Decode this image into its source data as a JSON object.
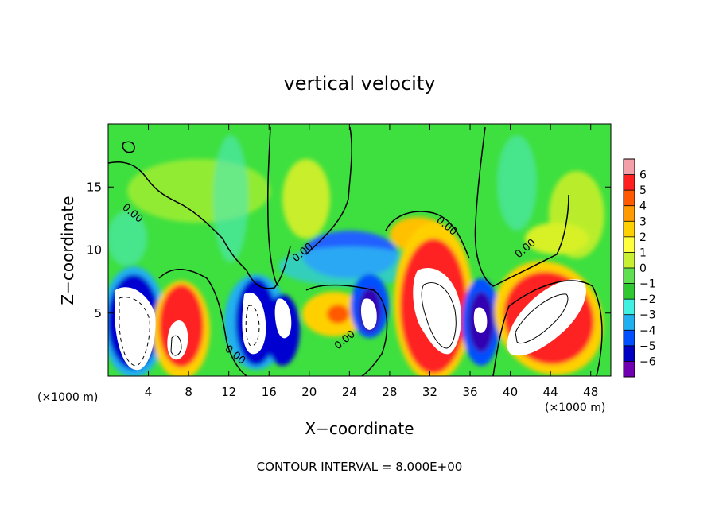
{
  "chart_data": {
    "type": "heatmap",
    "title": "vertical velocity",
    "xlabel": "X−coordinate",
    "ylabel": "Z−coordinate",
    "x_unit_left": "(×1000 m)",
    "x_unit_right": "(×1000 m)",
    "xlim": [
      0,
      50
    ],
    "ylim": [
      0,
      20
    ],
    "x_ticks": [
      4,
      8,
      12,
      16,
      20,
      24,
      28,
      32,
      36,
      40,
      44,
      48
    ],
    "x_tick_labels": [
      "4",
      "8",
      "12",
      "16",
      "20",
      "24",
      "28",
      "32",
      "36",
      "40",
      "44",
      "48"
    ],
    "y_ticks": [
      5,
      10,
      15
    ],
    "y_tick_labels": [
      "5",
      "10",
      "15"
    ],
    "colorbar": {
      "min": -6,
      "max": 6,
      "tick_values": [
        6,
        5,
        4,
        3,
        2,
        1,
        0,
        -1,
        -2,
        -3,
        -4,
        -5,
        -6
      ],
      "tick_labels": [
        "6",
        "5",
        "4",
        "3",
        "2",
        "1",
        "0",
        "−1",
        "−2",
        "−3",
        "−4",
        "−5",
        "−6"
      ],
      "colors": [
        "#f4a0a8",
        "#ff2020",
        "#ff5a00",
        "#ff9a00",
        "#ffd000",
        "#ffff40",
        "#c8f030",
        "#60e050",
        "#30c830",
        "#40f0e0",
        "#20b0f0",
        "#0050ff",
        "#0000c0",
        "#7000b0"
      ]
    },
    "contour_labels": [
      "0.00",
      "0.00",
      "0.00",
      "0.00",
      "0.00",
      "0.00"
    ],
    "features": [
      {
        "x": 2.4,
        "z": 4.8,
        "value": -9
      },
      {
        "x": 7.0,
        "z": 3.2,
        "value": 8
      },
      {
        "x": 14.6,
        "z": 4.8,
        "value": -8
      },
      {
        "x": 17.6,
        "z": 4.6,
        "value": -7
      },
      {
        "x": 21.5,
        "z": 5.0,
        "value": 3.5
      },
      {
        "x": 26.0,
        "z": 5.2,
        "value": -6
      },
      {
        "x": 32.5,
        "z": 5.5,
        "value": 9
      },
      {
        "x": 37.0,
        "z": 4.2,
        "value": -6
      },
      {
        "x": 43.5,
        "z": 5.0,
        "value": 9
      },
      {
        "x": 24.0,
        "z": 10.0,
        "value": -3.5
      },
      {
        "x": 19.5,
        "z": 12.0,
        "value": 1.5
      },
      {
        "x": 46.5,
        "z": 13.5,
        "value": 1.5
      }
    ],
    "contour_interval_label": "CONTOUR INTERVAL = 8.000E+00"
  }
}
